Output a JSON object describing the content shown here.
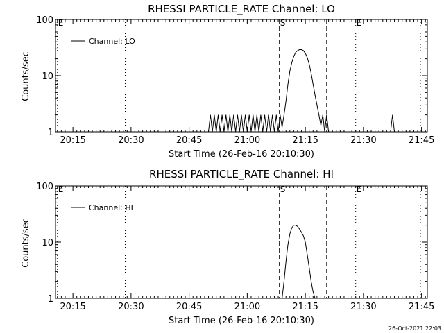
{
  "background_color": "#ffffff",
  "ink_color": "#000000",
  "timestamp": "26-Oct-2021 22:03",
  "chart_data": [
    {
      "type": "line",
      "title": "RHESSI PARTICLE_RATE Channel: LO",
      "xlabel": "Start Time (26-Feb-16 20:10:30)",
      "ylabel": "Counts/sec",
      "y_scale": "log",
      "ylim": [
        1,
        100
      ],
      "y_ticks": [
        {
          "value": 1,
          "label": "1"
        },
        {
          "value": 10,
          "label": "10"
        },
        {
          "value": 100,
          "label": "100"
        }
      ],
      "xlim_minutes": [
        10.5,
        106.5
      ],
      "x_ticks": [
        {
          "minute": 15,
          "label": "20:15"
        },
        {
          "minute": 30,
          "label": "20:30"
        },
        {
          "minute": 45,
          "label": "20:45"
        },
        {
          "minute": 60,
          "label": "21:00"
        },
        {
          "minute": 75,
          "label": "21:15"
        },
        {
          "minute": 90,
          "label": "21:30"
        },
        {
          "minute": 105,
          "label": "21:45"
        }
      ],
      "legend": {
        "label": "Channel: LO",
        "position": "top-left"
      },
      "markers": [
        {
          "minute": 11.0,
          "label": "E",
          "style": "dotted"
        },
        {
          "minute": 28.5,
          "label": "",
          "style": "dotted"
        },
        {
          "minute": 68.3,
          "label": "S",
          "style": "dashed"
        },
        {
          "minute": 80.5,
          "label": "",
          "style": "dashed"
        },
        {
          "minute": 88.0,
          "label": "E",
          "style": "dotted"
        },
        {
          "minute": 104.7,
          "label": "",
          "style": "dotted"
        }
      ],
      "series": [
        {
          "name": "Channel: LO",
          "x_minutes": [
            50.0,
            50.5,
            51.0,
            51.5,
            52.0,
            52.5,
            53.0,
            53.5,
            54.0,
            54.5,
            55.0,
            55.5,
            56.0,
            56.5,
            57.0,
            57.5,
            58.0,
            58.5,
            59.0,
            59.5,
            60.0,
            60.5,
            61.0,
            61.5,
            62.0,
            62.5,
            63.0,
            63.5,
            64.0,
            64.5,
            65.0,
            65.5,
            66.0,
            66.5,
            67.0,
            67.5,
            68.0,
            68.5,
            69.0,
            69.5,
            70.0,
            70.5,
            71.0,
            71.5,
            72.0,
            72.5,
            73.0,
            73.5,
            74.0,
            74.5,
            75.0,
            75.5,
            76.0,
            76.5,
            77.0,
            77.5,
            78.0,
            78.5,
            79.0,
            79.5,
            80.0,
            80.5,
            81.0,
            97.0,
            97.5,
            98.0
          ],
          "values": [
            1,
            2,
            1,
            2,
            1,
            2,
            1,
            2,
            1,
            2,
            1,
            2,
            1,
            2,
            1,
            2,
            1,
            2,
            1,
            2,
            1,
            2,
            1,
            2,
            1,
            2,
            1,
            2,
            1,
            2,
            1,
            2,
            1,
            2,
            1,
            2,
            1,
            2,
            1.2,
            2,
            3.5,
            7,
            12,
            17,
            22,
            26,
            28,
            29,
            29,
            28,
            25,
            21,
            16,
            11,
            7,
            4.5,
            3,
            2,
            1.3,
            2,
            1,
            2,
            1,
            1,
            2,
            1
          ]
        }
      ]
    },
    {
      "type": "line",
      "title": "RHESSI PARTICLE_RATE Channel: HI",
      "xlabel": "Start Time (26-Feb-16 20:10:30)",
      "ylabel": "Counts/sec",
      "y_scale": "log",
      "ylim": [
        1,
        100
      ],
      "y_ticks": [
        {
          "value": 1,
          "label": "1"
        },
        {
          "value": 10,
          "label": "10"
        },
        {
          "value": 100,
          "label": "100"
        }
      ],
      "xlim_minutes": [
        10.5,
        106.5
      ],
      "x_ticks": [
        {
          "minute": 15,
          "label": "20:15"
        },
        {
          "minute": 30,
          "label": "20:30"
        },
        {
          "minute": 45,
          "label": "20:45"
        },
        {
          "minute": 60,
          "label": "21:00"
        },
        {
          "minute": 75,
          "label": "21:15"
        },
        {
          "minute": 90,
          "label": "21:30"
        },
        {
          "minute": 105,
          "label": "21:45"
        }
      ],
      "legend": {
        "label": "Channel: HI",
        "position": "top-left"
      },
      "markers": [
        {
          "minute": 11.0,
          "label": "E",
          "style": "dotted"
        },
        {
          "minute": 28.5,
          "label": "",
          "style": "dotted"
        },
        {
          "minute": 68.3,
          "label": "S",
          "style": "dashed"
        },
        {
          "minute": 80.5,
          "label": "",
          "style": "dashed"
        },
        {
          "minute": 88.0,
          "label": "E",
          "style": "dotted"
        },
        {
          "minute": 104.7,
          "label": "",
          "style": "dotted"
        }
      ],
      "series": [
        {
          "name": "Channel: HI",
          "x_minutes": [
            69.0,
            69.5,
            70.0,
            70.5,
            71.0,
            71.5,
            72.0,
            72.5,
            73.0,
            73.5,
            74.0,
            74.5,
            75.0,
            75.5,
            76.0,
            76.5,
            77.0,
            77.5,
            78.0
          ],
          "values": [
            1,
            2,
            4.5,
            9,
            14,
            18,
            20,
            20,
            19,
            17,
            15,
            13,
            10,
            6,
            3.5,
            2,
            1.3,
            1,
            1
          ]
        }
      ]
    }
  ]
}
